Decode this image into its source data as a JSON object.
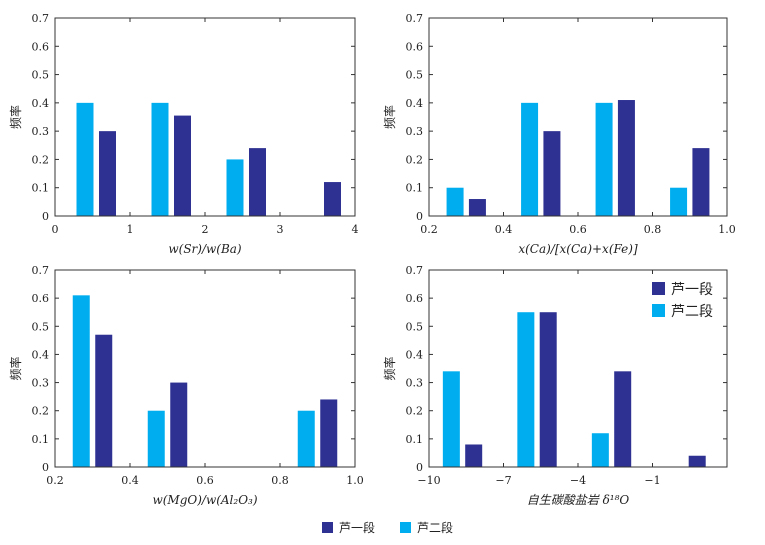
{
  "colors": {
    "seg1": "#2e3192",
    "seg2": "#00aeef",
    "axis": "#333333",
    "text": "#222222"
  },
  "legend": {
    "seg1_label": "芦一段",
    "seg2_label": "芦二段"
  },
  "chart_data": [
    {
      "type": "bar",
      "xlabel": "w(Sr)/w(Ba)",
      "ylabel": "频率",
      "xlim": [
        0,
        4
      ],
      "ylim": [
        0,
        0.7
      ],
      "xticks": [
        "0",
        "1",
        "2",
        "3",
        "4"
      ],
      "yticks": [
        "0",
        "0.1",
        "0.2",
        "0.3",
        "0.4",
        "0.5",
        "0.6",
        "0.7"
      ],
      "series": [
        {
          "name": "芦二段",
          "x": [
            0.4,
            1.4,
            2.4
          ],
          "values": [
            0.4,
            0.4,
            0.2
          ]
        },
        {
          "name": "芦一段",
          "x": [
            0.7,
            1.7,
            2.7,
            3.7
          ],
          "values": [
            0.3,
            0.355,
            0.24,
            0.12
          ]
        }
      ]
    },
    {
      "type": "bar",
      "xlabel": "x(Ca)/[x(Ca)+x(Fe)]",
      "ylabel": "频率",
      "xlim": [
        0.2,
        1.0
      ],
      "ylim": [
        0,
        0.7
      ],
      "xticks": [
        "0.2",
        "0.4",
        "0.6",
        "0.8",
        "1.0"
      ],
      "yticks": [
        "0",
        "0.1",
        "0.2",
        "0.3",
        "0.4",
        "0.5",
        "0.6",
        "0.7"
      ],
      "series": [
        {
          "name": "芦二段",
          "x": [
            0.27,
            0.47,
            0.67,
            0.87
          ],
          "values": [
            0.1,
            0.4,
            0.4,
            0.1
          ]
        },
        {
          "name": "芦一段",
          "x": [
            0.33,
            0.53,
            0.73,
            0.93
          ],
          "values": [
            0.06,
            0.3,
            0.41,
            0.24
          ]
        }
      ]
    },
    {
      "type": "bar",
      "xlabel": "w(MgO)/w(Al₂O₃)",
      "ylabel": "频率",
      "xlim": [
        0.2,
        1.0
      ],
      "ylim": [
        0,
        0.7
      ],
      "xticks": [
        "0.2",
        "0.4",
        "0.6",
        "0.8",
        "1.0"
      ],
      "yticks": [
        "0",
        "0.1",
        "0.2",
        "0.3",
        "0.4",
        "0.5",
        "0.6",
        "0.7"
      ],
      "series": [
        {
          "name": "芦二段",
          "x": [
            0.27,
            0.47,
            0.87
          ],
          "values": [
            0.61,
            0.2,
            0.2
          ]
        },
        {
          "name": "芦一段",
          "x": [
            0.33,
            0.53,
            0.93
          ],
          "values": [
            0.47,
            0.3,
            0.24
          ]
        }
      ]
    },
    {
      "type": "bar",
      "xlabel": "自生碳酸盐岩 δ¹⁸O",
      "ylabel": "频率",
      "xlim": [
        -10,
        2
      ],
      "ylim": [
        0,
        0.7
      ],
      "xticks": [
        "−10",
        "−7",
        "−4",
        "−1"
      ],
      "xtick_values": [
        -10,
        -7,
        -4,
        -1
      ],
      "yticks": [
        "0",
        "0.1",
        "0.2",
        "0.3",
        "0.4",
        "0.5",
        "0.6",
        "0.7"
      ],
      "legend": "top-right",
      "series": [
        {
          "name": "芦二段",
          "x": [
            -9.1,
            -6.1,
            -3.1
          ],
          "values": [
            0.34,
            0.55,
            0.12
          ]
        },
        {
          "name": "芦一段",
          "x": [
            -8.2,
            -5.2,
            -2.2,
            0.8
          ],
          "values": [
            0.08,
            0.55,
            0.34,
            0.04
          ]
        }
      ]
    }
  ]
}
